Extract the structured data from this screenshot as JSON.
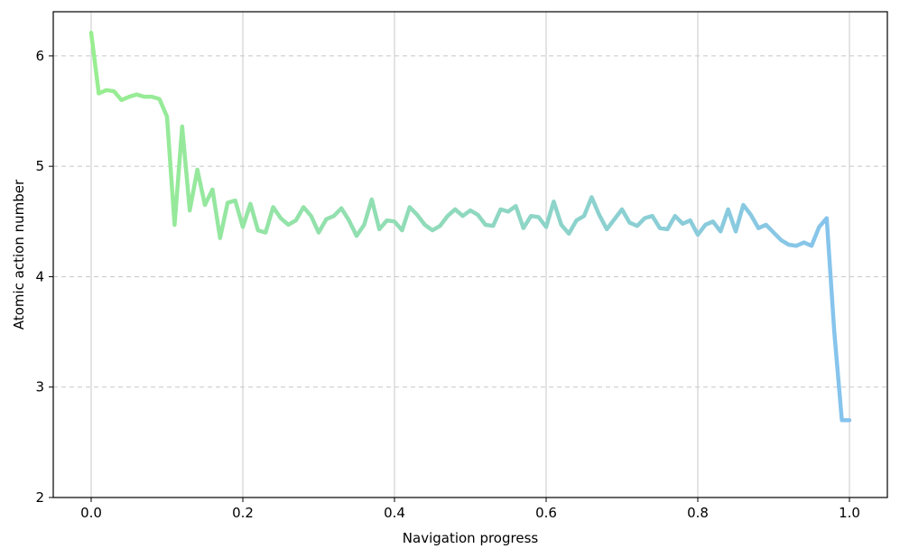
{
  "chart_data": {
    "type": "line",
    "xlabel": "Navigation progress",
    "ylabel": "Atomic action number",
    "xlim": [
      -0.05,
      1.05
    ],
    "ylim": [
      2,
      6.4
    ],
    "x_ticks": [
      0.0,
      0.2,
      0.4,
      0.6,
      0.8,
      1.0
    ],
    "x_tick_labels": [
      "0.0",
      "0.2",
      "0.4",
      "0.6",
      "0.8",
      "1.0"
    ],
    "y_ticks": [
      2,
      3,
      4,
      5,
      6
    ],
    "y_tick_labels": [
      "2",
      "3",
      "4",
      "5",
      "6"
    ],
    "grid": {
      "x": "solid",
      "y": "dashed"
    },
    "line_gradient": {
      "start_color": "#98ee90",
      "end_color": "#86c3ee"
    },
    "series": [
      {
        "x": [
          0.0,
          0.01,
          0.02,
          0.03,
          0.04,
          0.05,
          0.06,
          0.07,
          0.08,
          0.09,
          0.1,
          0.11,
          0.12,
          0.13,
          0.14,
          0.15,
          0.16,
          0.17,
          0.18,
          0.19,
          0.2,
          0.21,
          0.22,
          0.23,
          0.24,
          0.25,
          0.26,
          0.27,
          0.28,
          0.29,
          0.3,
          0.31,
          0.32,
          0.33,
          0.34,
          0.35,
          0.36,
          0.37,
          0.38,
          0.39,
          0.4,
          0.41,
          0.42,
          0.43,
          0.44,
          0.45,
          0.46,
          0.47,
          0.48,
          0.49,
          0.5,
          0.51,
          0.52,
          0.53,
          0.54,
          0.55,
          0.56,
          0.57,
          0.58,
          0.59,
          0.6,
          0.61,
          0.62,
          0.63,
          0.64,
          0.65,
          0.66,
          0.67,
          0.68,
          0.69,
          0.7,
          0.71,
          0.72,
          0.73,
          0.74,
          0.75,
          0.76,
          0.77,
          0.78,
          0.79,
          0.8,
          0.81,
          0.82,
          0.83,
          0.84,
          0.85,
          0.86,
          0.87,
          0.88,
          0.89,
          0.9,
          0.91,
          0.92,
          0.93,
          0.94,
          0.95,
          0.96,
          0.97,
          0.98,
          0.99,
          1.0
        ],
        "values": [
          6.21,
          5.66,
          5.69,
          5.68,
          5.6,
          5.63,
          5.65,
          5.63,
          5.63,
          5.61,
          5.45,
          4.47,
          5.36,
          4.6,
          4.97,
          4.65,
          4.79,
          4.35,
          4.67,
          4.69,
          4.45,
          4.66,
          4.42,
          4.4,
          4.63,
          4.53,
          4.47,
          4.51,
          4.63,
          4.55,
          4.4,
          4.52,
          4.55,
          4.62,
          4.51,
          4.37,
          4.47,
          4.7,
          4.43,
          4.51,
          4.5,
          4.42,
          4.63,
          4.56,
          4.47,
          4.42,
          4.46,
          4.55,
          4.61,
          4.55,
          4.6,
          4.56,
          4.47,
          4.46,
          4.61,
          4.59,
          4.64,
          4.44,
          4.55,
          4.54,
          4.45,
          4.68,
          4.47,
          4.39,
          4.51,
          4.55,
          4.72,
          4.56,
          4.43,
          4.52,
          4.61,
          4.49,
          4.46,
          4.53,
          4.55,
          4.44,
          4.43,
          4.55,
          4.48,
          4.51,
          4.38,
          4.47,
          4.5,
          4.41,
          4.61,
          4.41,
          4.65,
          4.56,
          4.44,
          4.47,
          4.4,
          4.33,
          4.29,
          4.28,
          4.31,
          4.28,
          4.45,
          4.53,
          3.5,
          2.7,
          2.7
        ]
      }
    ]
  }
}
